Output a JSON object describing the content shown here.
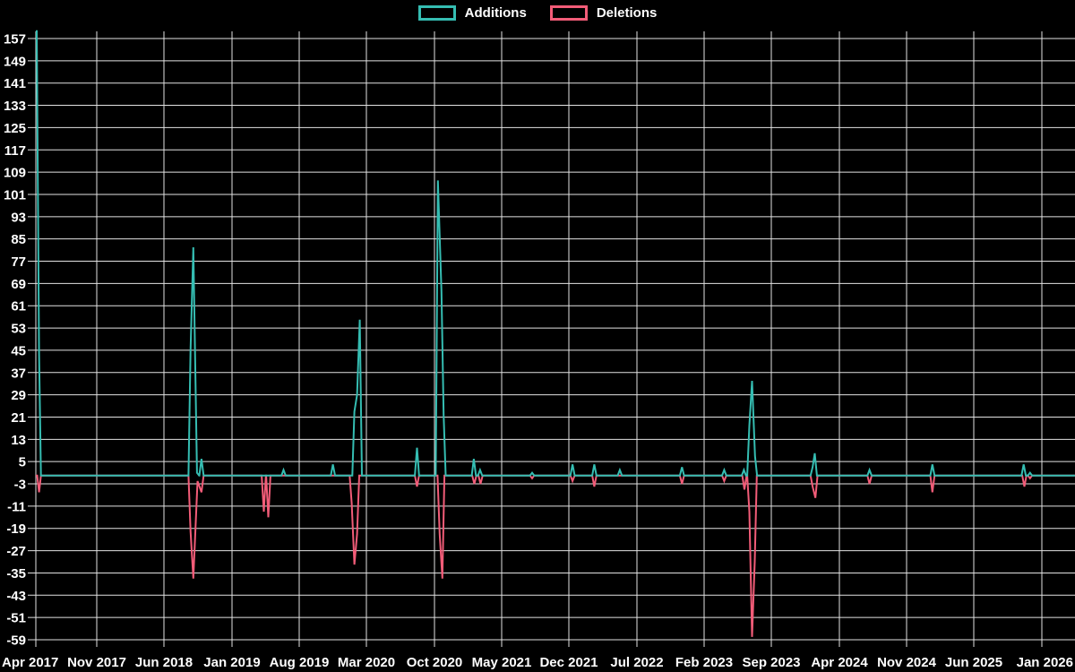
{
  "page": {
    "background": "#000000",
    "text_color": "#ffffff",
    "grid_color": "#e2e2e2"
  },
  "legend": {
    "items": [
      {
        "label": "Additions",
        "color": "#35bdb2"
      },
      {
        "label": "Deletions",
        "color": "#f25c78"
      }
    ]
  },
  "chart_data": {
    "type": "line",
    "title": "",
    "xlabel": "",
    "ylabel": "",
    "legend_position": "top-center",
    "grid": true,
    "background": "#000000",
    "grid_color": "#e2e2e2",
    "y_tick_values": [
      157,
      149,
      141,
      133,
      125,
      117,
      109,
      101,
      93,
      85,
      77,
      69,
      61,
      53,
      45,
      37,
      29,
      21,
      13,
      5,
      -3,
      -11,
      -19,
      -27,
      -35,
      -43,
      -51,
      -59
    ],
    "x_tick_labels": [
      "Apr 2017",
      "Nov 2017",
      "Jun 2018",
      "Jan 2019",
      "Aug 2019",
      "Mar 2020",
      "Oct 2020",
      "May 2021",
      "Dec 2021",
      "Jul 2022",
      "Feb 2023",
      "Sep 2023",
      "Apr 2024",
      "Nov 2024",
      "Jun 2025",
      "Jan 2026"
    ],
    "ylim": [
      -59,
      160
    ],
    "x_unit_note": "t = months after Apr 2017 (weekly commit activity; values between spikes are 0)",
    "series": [
      {
        "name": "Additions",
        "color": "#35bdb2",
        "points": [
          [
            0.1,
            160
          ],
          [
            0.37,
            44
          ],
          [
            16.74,
            45
          ],
          [
            17.02,
            82
          ],
          [
            17.4,
            1
          ],
          [
            17.86,
            6
          ],
          [
            26.37,
            2
          ],
          [
            31.51,
            4
          ],
          [
            33.75,
            23
          ],
          [
            34.03,
            29
          ],
          [
            34.31,
            56
          ],
          [
            40.2,
            10
          ],
          [
            42.35,
            106
          ],
          [
            42.73,
            66
          ],
          [
            42.95,
            22
          ],
          [
            46.1,
            6
          ],
          [
            46.75,
            2
          ],
          [
            52.17,
            1
          ],
          [
            56.38,
            4
          ],
          [
            58.62,
            4
          ],
          [
            61.24,
            2
          ],
          [
            67.69,
            3
          ],
          [
            72.09,
            2
          ],
          [
            74.14,
            2
          ],
          [
            74.71,
            18
          ],
          [
            74.99,
            34
          ],
          [
            75.3,
            7
          ],
          [
            81.25,
            3
          ],
          [
            81.47,
            8
          ],
          [
            87.14,
            2
          ],
          [
            93.69,
            4
          ],
          [
            103.13,
            4
          ],
          [
            103.78,
            1
          ]
        ]
      },
      {
        "name": "Deletions",
        "color": "#f25c78",
        "points": [
          [
            0.37,
            -6
          ],
          [
            16.74,
            -20
          ],
          [
            17.02,
            -37
          ],
          [
            17.45,
            -2
          ],
          [
            17.86,
            -6
          ],
          [
            24.31,
            -13
          ],
          [
            24.78,
            -15
          ],
          [
            33.47,
            -10
          ],
          [
            33.75,
            -32
          ],
          [
            34.03,
            -21
          ],
          [
            40.2,
            -4
          ],
          [
            42.54,
            -21
          ],
          [
            42.82,
            -37
          ],
          [
            46.15,
            -3
          ],
          [
            46.8,
            -3
          ],
          [
            52.17,
            -1
          ],
          [
            56.38,
            -2
          ],
          [
            58.62,
            -4
          ],
          [
            67.69,
            -3
          ],
          [
            72.09,
            -2
          ],
          [
            74.2,
            -5
          ],
          [
            74.71,
            -13
          ],
          [
            74.99,
            -58
          ],
          [
            75.27,
            -31
          ],
          [
            81.25,
            -4
          ],
          [
            81.53,
            -8
          ],
          [
            87.14,
            -3
          ],
          [
            93.69,
            -6
          ],
          [
            103.2,
            -4
          ],
          [
            103.78,
            -1
          ]
        ]
      }
    ]
  }
}
